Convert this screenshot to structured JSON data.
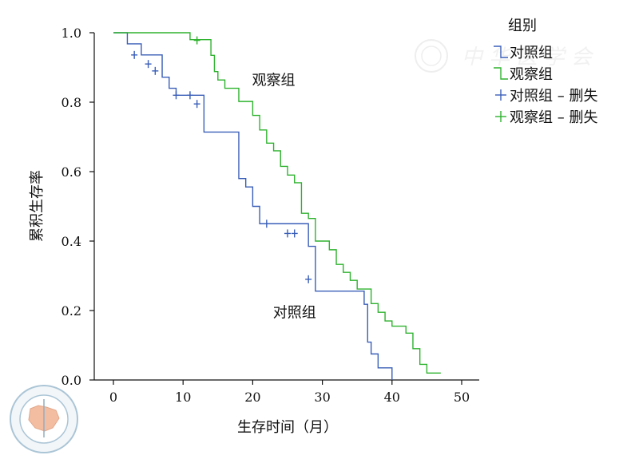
{
  "chart_data": {
    "type": "line",
    "ylabel": "累积生存率",
    "xlabel": "生存时间（月）",
    "xlim": [
      0,
      50
    ],
    "ylim": [
      0.0,
      1.0
    ],
    "x_ticks": [
      "0",
      "10",
      "20",
      "30",
      "40",
      "50"
    ],
    "y_ticks": [
      "0.0",
      "0.2",
      "0.4",
      "0.6",
      "0.8",
      "1.0"
    ],
    "grid": false,
    "legend": {
      "title": "组别",
      "placement": "top-right",
      "entries": [
        "对照组",
        "观察组",
        "对照组 – 删失",
        "观察组 – 删失"
      ]
    },
    "annotations": [
      {
        "text": "观察组",
        "x": 23,
        "y": 0.85
      },
      {
        "text": "对照组",
        "x": 26,
        "y": 0.18
      }
    ],
    "series": [
      {
        "name": "对照组",
        "color": "#3a5fb8",
        "steps": [
          [
            0,
            1.0
          ],
          [
            2,
            0.968
          ],
          [
            4,
            0.936
          ],
          [
            7,
            0.872
          ],
          [
            8,
            0.84
          ],
          [
            9,
            0.82
          ],
          [
            13,
            0.714
          ],
          [
            18,
            0.58
          ],
          [
            19,
            0.556
          ],
          [
            20,
            0.5
          ],
          [
            21,
            0.45
          ],
          [
            28,
            0.385
          ],
          [
            29,
            0.256
          ],
          [
            36,
            0.218
          ],
          [
            36.5,
            0.109
          ],
          [
            37,
            0.075
          ],
          [
            38,
            0.035
          ],
          [
            40,
            0.0
          ]
        ],
        "censored": [
          [
            3,
            0.936
          ],
          [
            5,
            0.91
          ],
          [
            6,
            0.89
          ],
          [
            9,
            0.82
          ],
          [
            11,
            0.82
          ],
          [
            12,
            0.795
          ],
          [
            22,
            0.45
          ],
          [
            25,
            0.422
          ],
          [
            26,
            0.422
          ],
          [
            28,
            0.29
          ]
        ]
      },
      {
        "name": "观察组",
        "color": "#2eb22e",
        "steps": [
          [
            0,
            1.0
          ],
          [
            11,
            0.98
          ],
          [
            14,
            0.935
          ],
          [
            14.5,
            0.888
          ],
          [
            15,
            0.864
          ],
          [
            16,
            0.84
          ],
          [
            18,
            0.802
          ],
          [
            20,
            0.762
          ],
          [
            21,
            0.72
          ],
          [
            22,
            0.682
          ],
          [
            23,
            0.66
          ],
          [
            24,
            0.615
          ],
          [
            25,
            0.59
          ],
          [
            26,
            0.568
          ],
          [
            27,
            0.48
          ],
          [
            28,
            0.465
          ],
          [
            29,
            0.4
          ],
          [
            31,
            0.375
          ],
          [
            32,
            0.333
          ],
          [
            33,
            0.31
          ],
          [
            34,
            0.287
          ],
          [
            35,
            0.262
          ],
          [
            37,
            0.22
          ],
          [
            38,
            0.195
          ],
          [
            39,
            0.17
          ],
          [
            40,
            0.155
          ],
          [
            42,
            0.135
          ],
          [
            43,
            0.09
          ],
          [
            44,
            0.045
          ],
          [
            45,
            0.02
          ],
          [
            47,
            0.02
          ]
        ],
        "censored": [
          [
            12,
            0.978
          ]
        ]
      }
    ]
  }
}
